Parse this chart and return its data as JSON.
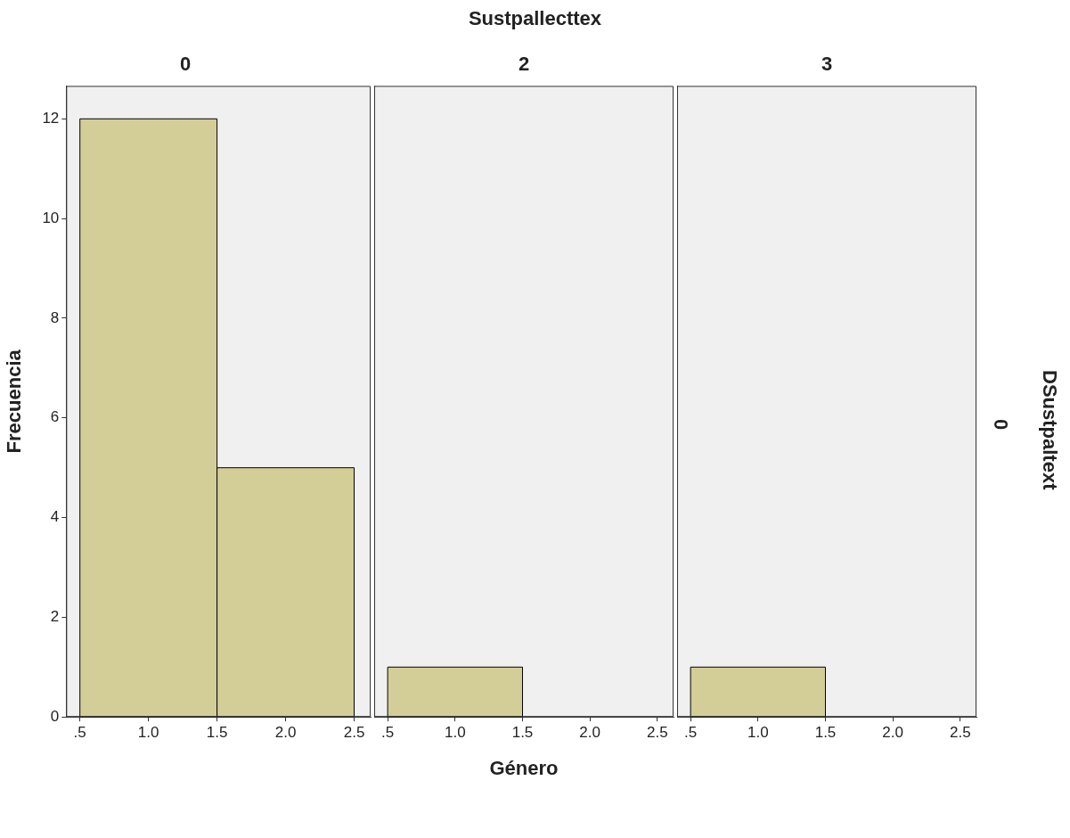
{
  "chart_data": [
    {
      "type": "histogram",
      "title": "0",
      "ylabel": "Frecuencia",
      "bins": [
        0.5,
        1.5,
        2.5
      ],
      "values": [
        12,
        5
      ],
      "color": "#d3ce97",
      "xlim": [
        0.4,
        2.62
      ],
      "ylim": [
        0,
        12.66
      ],
      "xticks": [
        {
          "value": 0.5,
          "label": ".5"
        },
        {
          "value": 1,
          "label": "1.0"
        },
        {
          "value": 1.5,
          "label": "1.5"
        },
        {
          "value": 2,
          "label": "2.0"
        },
        {
          "value": 2.5,
          "label": "2.5"
        }
      ],
      "yticks": [
        0,
        2,
        4,
        6,
        8,
        10,
        12
      ],
      "grid": false,
      "legend": false
    },
    {
      "type": "histogram",
      "title": "2",
      "xlabel": "Género",
      "annotations": [
        "Sustpallecttex"
      ],
      "bins": [
        0.5,
        1.5,
        2.5
      ],
      "values": [
        1,
        0
      ],
      "color": "#d3ce97",
      "xlim": [
        0.4,
        2.62
      ],
      "ylim": [
        0,
        12.66
      ],
      "xticks": [
        {
          "value": 0.5,
          "label": ".5"
        },
        {
          "value": 1,
          "label": "1.0"
        },
        {
          "value": 1.5,
          "label": "1.5"
        },
        {
          "value": 2,
          "label": "2.0"
        },
        {
          "value": 2.5,
          "label": "2.5"
        }
      ],
      "yticks": [
        0,
        2,
        4,
        6,
        8,
        10,
        12
      ],
      "grid": false,
      "legend": false,
      "tick_labels": "x"
    },
    {
      "type": "histogram",
      "title": "3",
      "y2label": "DSustpaltext",
      "annotations": [
        "0"
      ],
      "bins": [
        0.5,
        1.5,
        2.5
      ],
      "values": [
        1,
        0
      ],
      "color": "#d3ce97",
      "xlim": [
        0.4,
        2.62
      ],
      "ylim": [
        0,
        12.66
      ],
      "xticks": [
        {
          "value": 0.5,
          "label": ".5"
        },
        {
          "value": 1,
          "label": "1.0"
        },
        {
          "value": 1.5,
          "label": "1.5"
        },
        {
          "value": 2,
          "label": "2.0"
        },
        {
          "value": 2.5,
          "label": "2.5"
        }
      ],
      "yticks": [
        0,
        2,
        4,
        6,
        8,
        10,
        12
      ],
      "grid": false,
      "legend": false,
      "tick_labels": "x"
    }
  ]
}
